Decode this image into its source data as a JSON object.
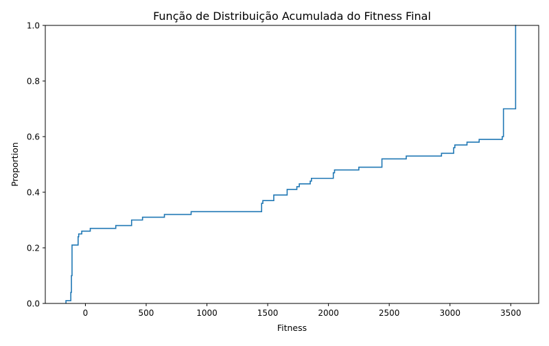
{
  "chart_data": {
    "type": "line",
    "step": true,
    "title": "Função de Distribuição Acumulada do Fitness Final",
    "xlabel": "Fitness",
    "ylabel": "Proportion",
    "xlim": [
      -330,
      3730
    ],
    "ylim": [
      0,
      1.0
    ],
    "xticks": [
      0,
      500,
      1000,
      1500,
      2000,
      2500,
      3000,
      3500
    ],
    "xtick_labels": [
      "0",
      "500",
      "1000",
      "1500",
      "2000",
      "2500",
      "3000",
      "3500"
    ],
    "yticks": [
      0.0,
      0.2,
      0.4,
      0.6,
      0.8,
      1.0
    ],
    "ytick_labels": [
      "0.0",
      "0.2",
      "0.4",
      "0.6",
      "0.8",
      "1.0"
    ],
    "grid": false,
    "line_color": "#1f77b4",
    "x": [
      -160,
      -140,
      -120,
      -115,
      -110,
      -60,
      -55,
      -50,
      -30,
      40,
      250,
      380,
      470,
      650,
      870,
      1450,
      1460,
      1480,
      1550,
      1660,
      1740,
      1760,
      1850,
      1860,
      2040,
      2050,
      2250,
      2440,
      2640,
      2930,
      3030,
      3040,
      3140,
      3240,
      3430,
      3440,
      3540,
      3545
    ],
    "y": [
      0.01,
      0.01,
      0.04,
      0.1,
      0.21,
      0.24,
      0.25,
      0.25,
      0.26,
      0.27,
      0.28,
      0.3,
      0.31,
      0.32,
      0.33,
      0.36,
      0.37,
      0.37,
      0.39,
      0.41,
      0.42,
      0.43,
      0.44,
      0.45,
      0.47,
      0.48,
      0.49,
      0.52,
      0.53,
      0.54,
      0.56,
      0.57,
      0.58,
      0.59,
      0.6,
      0.7,
      1.0,
      1.0
    ]
  }
}
